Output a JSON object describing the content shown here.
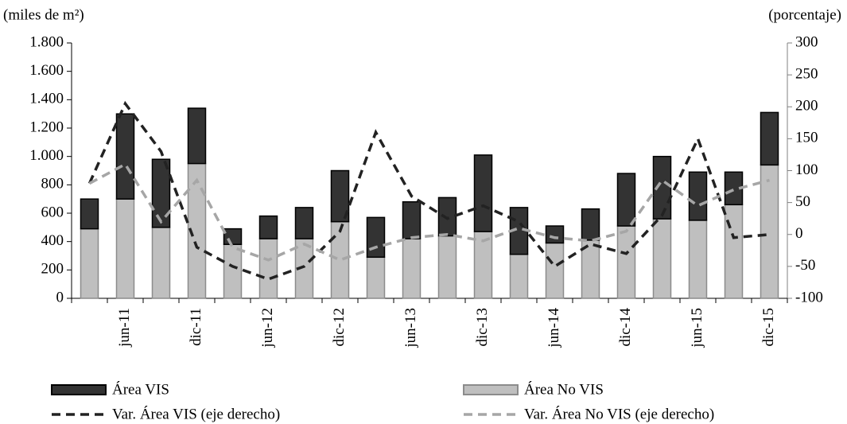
{
  "chart_data": {
    "type": "bar",
    "stacked": true,
    "y_label": "(miles de m²)",
    "y2_label": "(porcentaje)",
    "categories": [
      null,
      "jun-11",
      null,
      "dic-11",
      null,
      "jun-12",
      null,
      "dic-12",
      null,
      "jun-13",
      null,
      "dic-13",
      null,
      "jun-14",
      null,
      "dic-14",
      null,
      "jun-15",
      null,
      "dic-15"
    ],
    "series": [
      {
        "name": "Área No VIS",
        "type": "bar",
        "color": "#bfbfbf",
        "values": [
          490,
          700,
          500,
          950,
          380,
          420,
          420,
          540,
          290,
          420,
          440,
          470,
          310,
          390,
          410,
          510,
          560,
          550,
          660,
          940
        ]
      },
      {
        "name": "Área VIS",
        "type": "bar",
        "color": "#333333",
        "values": [
          210,
          600,
          480,
          390,
          110,
          160,
          220,
          360,
          280,
          260,
          270,
          540,
          330,
          120,
          220,
          370,
          440,
          340,
          230,
          370
        ]
      },
      {
        "name": "Var. Área VIS (eje derecho)",
        "type": "line",
        "axis": "y2",
        "color": "#222222",
        "values": [
          80,
          205,
          130,
          -20,
          -50,
          -70,
          -50,
          5,
          160,
          60,
          25,
          45,
          20,
          -50,
          -15,
          -30,
          30,
          150,
          -5,
          0
        ]
      },
      {
        "name": "Var. Área No VIS (eje derecho)",
        "type": "line",
        "axis": "y2",
        "color": "#a6a6a6",
        "values": [
          80,
          110,
          20,
          85,
          -20,
          -40,
          -15,
          -40,
          -20,
          -5,
          0,
          -10,
          10,
          -5,
          -10,
          5,
          85,
          45,
          70,
          85
        ]
      }
    ],
    "ylim": [
      0,
      1800
    ],
    "yticks": [
      0,
      200,
      400,
      600,
      800,
      {
        "value": 1000,
        "label": "1.000"
      },
      {
        "value": 1200,
        "label": "1.200"
      },
      {
        "value": 1400,
        "label": "1.400"
      },
      {
        "value": 1600,
        "label": "1.600"
      },
      {
        "value": 1800,
        "label": "1.800"
      }
    ],
    "y2lim": [
      -100,
      300
    ],
    "y2ticks": [
      -100,
      -50,
      0,
      50,
      100,
      150,
      200,
      250,
      300
    ]
  }
}
